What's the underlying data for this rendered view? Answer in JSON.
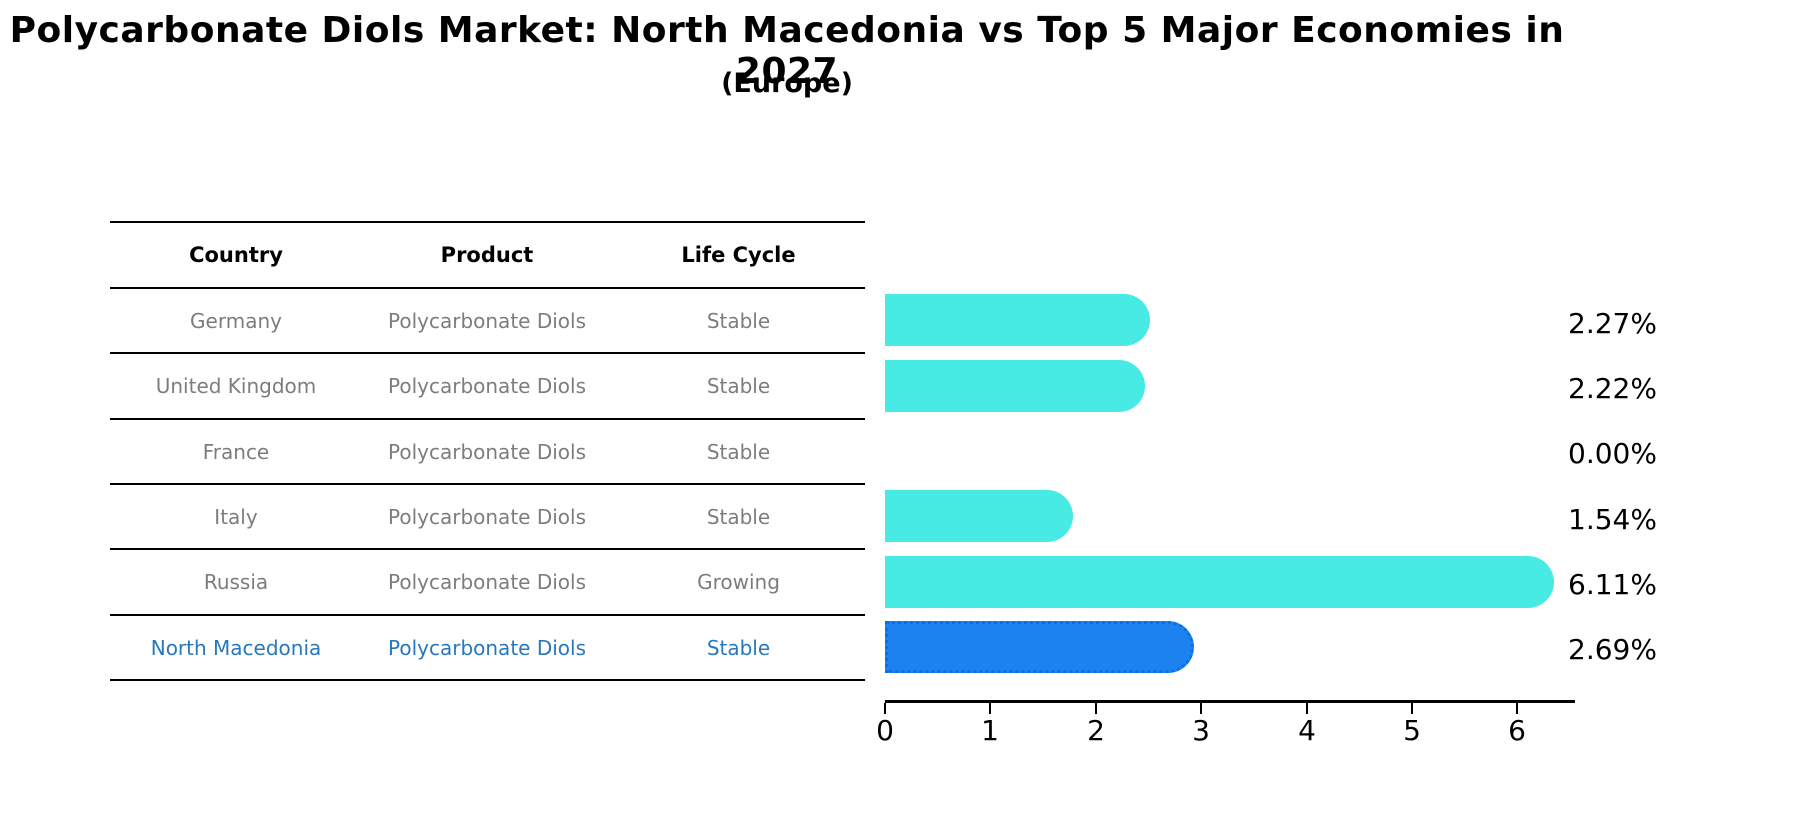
{
  "title": "Polycarbonate Diols Market: North Macedonia vs Top 5 Major Economies in 2027",
  "subtitle": "(Europe)",
  "table": {
    "headers": [
      "Country",
      "Product",
      "Life Cycle"
    ],
    "rows": [
      {
        "country": "Germany",
        "product": "Polycarbonate Diols",
        "life_cycle": "Stable",
        "highlighted": false
      },
      {
        "country": "United Kingdom",
        "product": "Polycarbonate Diols",
        "life_cycle": "Stable",
        "highlighted": false
      },
      {
        "country": "France",
        "product": "Polycarbonate Diols",
        "life_cycle": "Stable",
        "highlighted": false
      },
      {
        "country": "Italy",
        "product": "Polycarbonate Diols",
        "life_cycle": "Stable",
        "highlighted": false
      },
      {
        "country": "Russia",
        "product": "Polycarbonate Diols",
        "life_cycle": "Growing",
        "highlighted": false
      },
      {
        "country": "North Macedonia",
        "product": "Polycarbonate Diols",
        "life_cycle": "Stable",
        "highlighted": true
      }
    ]
  },
  "chart_data": {
    "type": "bar",
    "orientation": "horizontal",
    "title": "Polycarbonate Diols Market: North Macedonia vs Top 5 Major Economies in 2027 (Europe)",
    "categories": [
      "Germany",
      "United Kingdom",
      "France",
      "Italy",
      "Russia",
      "North Macedonia"
    ],
    "values": [
      2.27,
      2.22,
      0.0,
      1.54,
      6.11,
      2.69
    ],
    "value_labels": [
      "2.27%",
      "2.22%",
      "0.00%",
      "1.54%",
      "6.11%",
      "2.69%"
    ],
    "x_ticks": [
      "0",
      "1",
      "2",
      "3",
      "4",
      "5",
      "6"
    ],
    "xlim": [
      0,
      6.5
    ],
    "grid": false,
    "legend": false,
    "bar_color": "#48eae4",
    "highlight_bar_color": "#1c82f0",
    "highlight_text_color": "#2878be",
    "highlight_index": 5
  }
}
